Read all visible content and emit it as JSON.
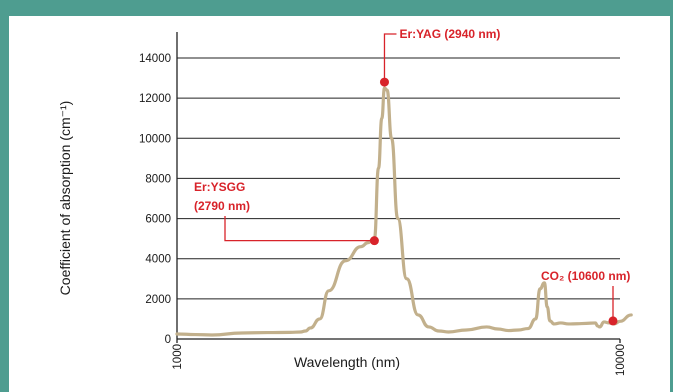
{
  "colors": {
    "frame": "#4e9d90",
    "curve": "#c2b08c",
    "annotation": "#d8232a",
    "grid": "#222222"
  },
  "chart_data": {
    "type": "line",
    "title": "",
    "xlabel": "Wavelength (nm)",
    "ylabel": "Coefficient of absorption (cm⁻¹)",
    "x_scale": "log",
    "xlim": [
      1000,
      10000
    ],
    "ylim": [
      0,
      14000
    ],
    "x_ticks": [
      "1000",
      "10000"
    ],
    "y_ticks": [
      0,
      2000,
      4000,
      6000,
      8000,
      10000,
      12000,
      14000
    ],
    "grid": "horizontal",
    "series": [
      {
        "x": [
          1000,
          1100,
          1200,
          1400,
          1600,
          1800,
          1900,
          1950,
          2000,
          2100,
          2200,
          2400,
          2600,
          2700,
          2750,
          2790,
          2850,
          2900,
          2940,
          2980,
          3050,
          3150,
          3300,
          3500,
          3700,
          3900,
          4100,
          4500,
          5000,
          5300,
          5600,
          5900,
          6200,
          6450,
          6600,
          6750,
          6850,
          6950,
          7100,
          7350,
          7650,
          8000,
          8400,
          8800,
          8900,
          9000,
          9200,
          9450,
          9700,
          10000,
          10600
        ],
        "y": [
          250,
          220,
          200,
          300,
          320,
          330,
          350,
          400,
          550,
          1000,
          2400,
          3900,
          4600,
          4800,
          4900,
          5000,
          8500,
          11000,
          12500,
          12400,
          10000,
          6000,
          3000,
          1200,
          600,
          400,
          350,
          450,
          600,
          500,
          420,
          450,
          520,
          1000,
          2500,
          2800,
          1600,
          900,
          750,
          800,
          750,
          760,
          780,
          800,
          650,
          600,
          850,
          800,
          750,
          880,
          1200
        ]
      }
    ],
    "annotations": [
      {
        "label": "Er:YAG (2940 nm)",
        "x": 2940,
        "y": 12800
      },
      {
        "label": "Er:YSGG",
        "label_line2": "(2790 nm)",
        "x": 2790,
        "y": 4900
      },
      {
        "label": "CO₂ (10600 nm)",
        "x": 10600,
        "y": 900
      }
    ]
  }
}
